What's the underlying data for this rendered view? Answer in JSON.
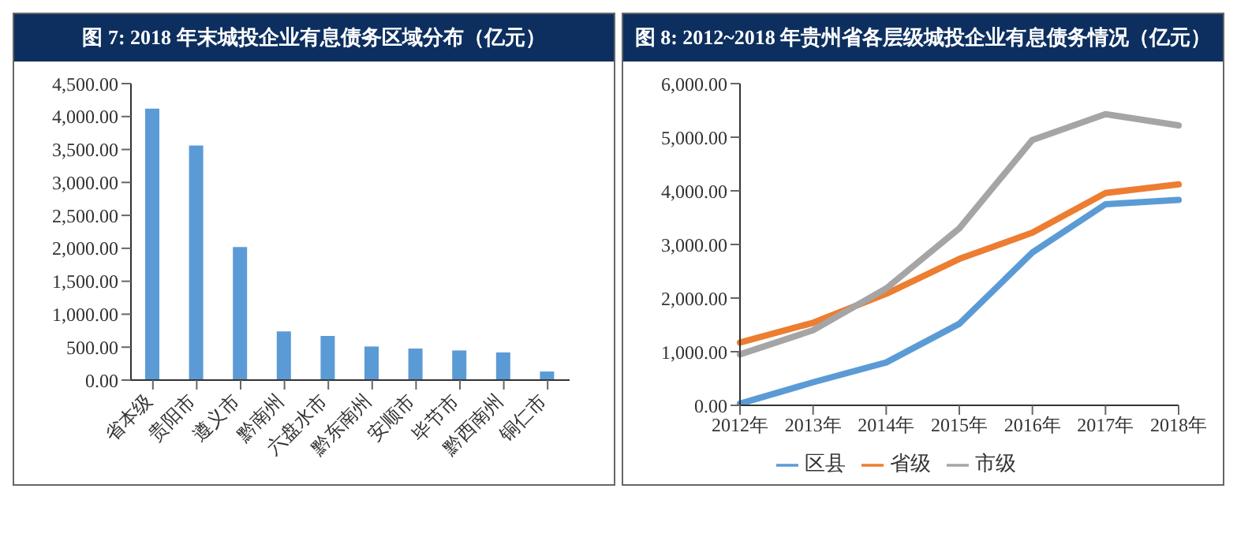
{
  "chart_data": [
    {
      "type": "bar",
      "title": "图 7:  2018 年末城投企业有息债务区域分布（亿元）",
      "categories": [
        "省本级",
        "贵阳市",
        "遵义市",
        "黔南州",
        "六盘水市",
        "黔东南州",
        "安顺市",
        "毕节市",
        "黔西南州",
        "铜仁市"
      ],
      "values": [
        4120,
        3560,
        2020,
        740,
        670,
        510,
        480,
        450,
        420,
        130
      ],
      "color": "#5b9bd5",
      "ylim": [
        0,
        4500
      ],
      "yticks": [
        {
          "value": 0,
          "label": "0.00"
        },
        {
          "value": 500,
          "label": "500.00"
        },
        {
          "value": 1000,
          "label": "1,000.00"
        },
        {
          "value": 1500,
          "label": "1,500.00"
        },
        {
          "value": 2000,
          "label": "2,000.00"
        },
        {
          "value": 2500,
          "label": "2,500.00"
        },
        {
          "value": 3000,
          "label": "3,000.00"
        },
        {
          "value": 3500,
          "label": "3,500.00"
        },
        {
          "value": 4000,
          "label": "4,000.00"
        },
        {
          "value": 4500,
          "label": "4,500.00"
        }
      ],
      "grid": false
    },
    {
      "type": "line",
      "title": "图 8:  2012~2018 年贵州省各层级城投企业有息债务情况（亿元）",
      "categories": [
        "2012年",
        "2013年",
        "2014年",
        "2015年",
        "2016年",
        "2017年",
        "2018年"
      ],
      "series": [
        {
          "name": "区县",
          "color": "#5b9bd5",
          "values": [
            30,
            430,
            800,
            1520,
            2850,
            3750,
            3830
          ]
        },
        {
          "name": "省级",
          "color": "#ed7d31",
          "values": [
            1170,
            1540,
            2080,
            2730,
            3220,
            3960,
            4120
          ]
        },
        {
          "name": "市级",
          "color": "#a5a5a5",
          "values": [
            950,
            1400,
            2180,
            3300,
            4950,
            5430,
            5220
          ]
        }
      ],
      "ylim": [
        0,
        6000
      ],
      "yticks": [
        {
          "value": 0,
          "label": "0.00"
        },
        {
          "value": 1000,
          "label": "1,000.00"
        },
        {
          "value": 2000,
          "label": "2,000.00"
        },
        {
          "value": 3000,
          "label": "3,000.00"
        },
        {
          "value": 4000,
          "label": "4,000.00"
        },
        {
          "value": 5000,
          "label": "5,000.00"
        },
        {
          "value": 6000,
          "label": "6,000.00"
        }
      ],
      "grid": false,
      "legend": "bottom",
      "marker": "none",
      "line_style": "solid"
    }
  ]
}
